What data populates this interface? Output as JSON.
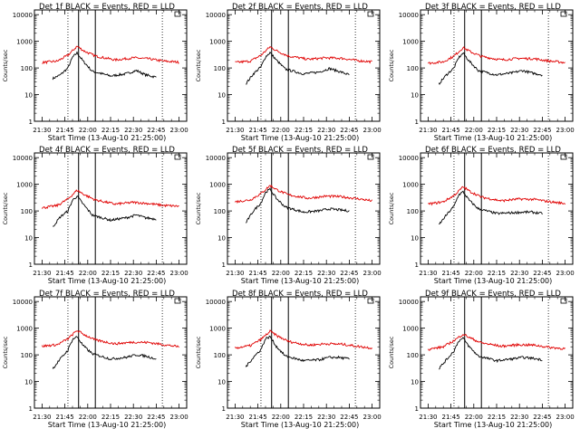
{
  "figure": {
    "x_label": "Start Time (13-Aug-10 21:25:00)",
    "y_label": "Counts/sec",
    "y_ticks": [
      "1",
      "10",
      "100",
      "1000",
      "10000"
    ],
    "x_ticks": [
      "21:30",
      "21:45",
      "22:00",
      "22:15",
      "22:30",
      "22:45",
      "23:00"
    ]
  },
  "chart_data": [
    {
      "type": "line",
      "title": "Det 1f BLACK = Events, RED = LLD",
      "log_y": true,
      "ylim": [
        1,
        15000
      ],
      "xlim": [
        "21:25",
        "23:05"
      ],
      "dotted_markers": [
        "21:47",
        "22:49"
      ],
      "solid_markers": [
        "21:54",
        "22:05"
      ],
      "series": [
        {
          "name": "Events",
          "color": "#000000",
          "x": [
            "21:37",
            "21:42",
            "21:47",
            "21:50",
            "21:53",
            "21:57",
            "22:03",
            "22:15",
            "22:25",
            "22:32",
            "22:38",
            "22:45"
          ],
          "values": [
            40,
            55,
            100,
            250,
            370,
            180,
            75,
            50,
            60,
            80,
            55,
            45
          ]
        },
        {
          "name": "LLD",
          "color": "#e00000",
          "x": [
            "21:30",
            "21:40",
            "21:47",
            "21:53",
            "21:58",
            "22:05",
            "22:18",
            "22:30",
            "22:40",
            "22:50",
            "23:00"
          ],
          "values": [
            160,
            180,
            300,
            650,
            420,
            280,
            200,
            240,
            220,
            180,
            165
          ]
        }
      ]
    },
    {
      "type": "line",
      "title": "Det 2f BLACK = Events, RED = LLD",
      "log_y": true,
      "ylim": [
        1,
        15000
      ],
      "xlim": [
        "21:25",
        "23:05"
      ],
      "dotted_markers": [
        "21:47",
        "22:49"
      ],
      "solid_markers": [
        "21:54",
        "22:05"
      ],
      "series": [
        {
          "name": "Events",
          "color": "#000000",
          "x": [
            "21:37",
            "21:42",
            "21:47",
            "21:50",
            "21:53",
            "21:57",
            "22:03",
            "22:15",
            "22:25",
            "22:32",
            "22:38",
            "22:45"
          ],
          "values": [
            25,
            60,
            110,
            260,
            380,
            200,
            90,
            60,
            70,
            95,
            75,
            55
          ]
        },
        {
          "name": "LLD",
          "color": "#e00000",
          "x": [
            "21:30",
            "21:40",
            "21:47",
            "21:53",
            "21:58",
            "22:05",
            "22:18",
            "22:30",
            "22:40",
            "22:50",
            "23:00"
          ],
          "values": [
            160,
            180,
            300,
            620,
            420,
            280,
            210,
            240,
            230,
            190,
            170
          ]
        }
      ]
    },
    {
      "type": "line",
      "title": "Det 3f BLACK = Events, RED = LLD",
      "log_y": true,
      "ylim": [
        1,
        15000
      ],
      "xlim": [
        "21:25",
        "23:05"
      ],
      "dotted_markers": [
        "21:47",
        "22:49"
      ],
      "solid_markers": [
        "21:54",
        "22:05"
      ],
      "series": [
        {
          "name": "Events",
          "color": "#000000",
          "x": [
            "21:37",
            "21:42",
            "21:47",
            "21:50",
            "21:53",
            "21:57",
            "22:03",
            "22:15",
            "22:25",
            "22:32",
            "22:38",
            "22:45"
          ],
          "values": [
            25,
            55,
            100,
            240,
            360,
            180,
            80,
            55,
            65,
            80,
            65,
            55
          ]
        },
        {
          "name": "LLD",
          "color": "#e00000",
          "x": [
            "21:30",
            "21:40",
            "21:47",
            "21:53",
            "21:58",
            "22:05",
            "22:18",
            "22:30",
            "22:40",
            "22:50",
            "23:00"
          ],
          "values": [
            150,
            170,
            280,
            580,
            400,
            270,
            200,
            230,
            220,
            180,
            160
          ]
        }
      ]
    },
    {
      "type": "line",
      "title": "Det 4f BLACK = Events, RED = LLD",
      "log_y": true,
      "ylim": [
        1,
        15000
      ],
      "xlim": [
        "21:25",
        "23:05"
      ],
      "dotted_markers": [
        "21:47",
        "22:49"
      ],
      "solid_markers": [
        "21:54",
        "22:05"
      ],
      "series": [
        {
          "name": "Events",
          "color": "#000000",
          "x": [
            "21:37",
            "21:42",
            "21:47",
            "21:50",
            "21:53",
            "21:57",
            "22:03",
            "22:15",
            "22:25",
            "22:32",
            "22:38",
            "22:45"
          ],
          "values": [
            25,
            60,
            100,
            250,
            360,
            180,
            70,
            45,
            55,
            70,
            55,
            50
          ]
        },
        {
          "name": "LLD",
          "color": "#e00000",
          "x": [
            "21:30",
            "21:40",
            "21:47",
            "21:53",
            "21:58",
            "22:05",
            "22:18",
            "22:30",
            "22:40",
            "22:50",
            "23:00"
          ],
          "values": [
            130,
            160,
            280,
            600,
            400,
            260,
            180,
            210,
            190,
            160,
            150
          ]
        }
      ]
    },
    {
      "type": "line",
      "title": "Det 5f BLACK = Events, RED = LLD",
      "log_y": true,
      "ylim": [
        1,
        15000
      ],
      "xlim": [
        "21:25",
        "23:05"
      ],
      "dotted_markers": [
        "21:47",
        "22:49"
      ],
      "solid_markers": [
        "21:54",
        "22:05"
      ],
      "series": [
        {
          "name": "Events",
          "color": "#000000",
          "x": [
            "21:37",
            "21:42",
            "21:47",
            "21:50",
            "21:53",
            "21:57",
            "22:03",
            "22:15",
            "22:25",
            "22:32",
            "22:38",
            "22:45"
          ],
          "values": [
            35,
            100,
            200,
            500,
            650,
            300,
            140,
            90,
            100,
            120,
            110,
            100
          ]
        },
        {
          "name": "LLD",
          "color": "#e00000",
          "x": [
            "21:30",
            "21:40",
            "21:47",
            "21:53",
            "21:58",
            "22:05",
            "22:18",
            "22:30",
            "22:40",
            "22:50",
            "23:00"
          ],
          "values": [
            220,
            260,
            450,
            900,
            600,
            400,
            300,
            360,
            340,
            290,
            240
          ]
        }
      ]
    },
    {
      "type": "line",
      "title": "Det 6f BLACK = Events, RED = LLD",
      "log_y": true,
      "ylim": [
        1,
        15000
      ],
      "xlim": [
        "21:25",
        "23:05"
      ],
      "dotted_markers": [
        "21:47",
        "22:49"
      ],
      "solid_markers": [
        "21:54",
        "22:05"
      ],
      "series": [
        {
          "name": "Events",
          "color": "#000000",
          "x": [
            "21:37",
            "21:42",
            "21:47",
            "21:50",
            "21:53",
            "21:57",
            "22:03",
            "22:15",
            "22:25",
            "22:32",
            "22:38",
            "22:45"
          ],
          "values": [
            30,
            70,
            150,
            400,
            520,
            250,
            120,
            80,
            85,
            90,
            90,
            80
          ]
        },
        {
          "name": "LLD",
          "color": "#e00000",
          "x": [
            "21:30",
            "21:40",
            "21:47",
            "21:53",
            "21:58",
            "22:05",
            "22:18",
            "22:30",
            "22:40",
            "22:50",
            "23:00"
          ],
          "values": [
            180,
            220,
            380,
            800,
            520,
            330,
            240,
            280,
            270,
            220,
            190
          ]
        }
      ]
    },
    {
      "type": "line",
      "title": "Det 7f BLACK = Events, RED = LLD",
      "log_y": true,
      "ylim": [
        1,
        15000
      ],
      "xlim": [
        "21:25",
        "23:05"
      ],
      "dotted_markers": [
        "21:47",
        "22:49"
      ],
      "solid_markers": [
        "21:54",
        "22:05"
      ],
      "series": [
        {
          "name": "Events",
          "color": "#000000",
          "x": [
            "21:37",
            "21:42",
            "21:47",
            "21:50",
            "21:53",
            "21:57",
            "22:03",
            "22:15",
            "22:25",
            "22:32",
            "22:38",
            "22:45"
          ],
          "values": [
            30,
            70,
            150,
            380,
            480,
            220,
            110,
            70,
            80,
            100,
            90,
            70
          ]
        },
        {
          "name": "LLD",
          "color": "#e00000",
          "x": [
            "21:30",
            "21:40",
            "21:47",
            "21:53",
            "21:58",
            "22:05",
            "22:18",
            "22:30",
            "22:40",
            "22:50",
            "23:00"
          ],
          "values": [
            210,
            240,
            400,
            820,
            560,
            360,
            260,
            300,
            290,
            240,
            200
          ]
        }
      ]
    },
    {
      "type": "line",
      "title": "Det 8f BLACK = Events, RED = LLD",
      "log_y": true,
      "ylim": [
        1,
        15000
      ],
      "xlim": [
        "21:25",
        "23:05"
      ],
      "dotted_markers": [
        "21:47",
        "22:49"
      ],
      "solid_markers": [
        "21:54",
        "22:05"
      ],
      "series": [
        {
          "name": "Events",
          "color": "#000000",
          "x": [
            "21:37",
            "21:42",
            "21:47",
            "21:50",
            "21:53",
            "21:57",
            "22:03",
            "22:15",
            "22:25",
            "22:32",
            "22:38",
            "22:45"
          ],
          "values": [
            35,
            80,
            160,
            400,
            480,
            210,
            90,
            60,
            65,
            80,
            80,
            70
          ]
        },
        {
          "name": "LLD",
          "color": "#e00000",
          "x": [
            "21:30",
            "21:40",
            "21:47",
            "21:53",
            "21:58",
            "22:05",
            "22:18",
            "22:30",
            "22:40",
            "22:50",
            "23:00"
          ],
          "values": [
            180,
            220,
            380,
            760,
            500,
            320,
            230,
            260,
            250,
            210,
            180
          ]
        }
      ]
    },
    {
      "type": "line",
      "title": "Det 9f BLACK = Events, RED = LLD",
      "log_y": true,
      "ylim": [
        1,
        15000
      ],
      "xlim": [
        "21:25",
        "23:05"
      ],
      "dotted_markers": [
        "21:47",
        "22:49"
      ],
      "solid_markers": [
        "21:54",
        "22:05"
      ],
      "series": [
        {
          "name": "Events",
          "color": "#000000",
          "x": [
            "21:37",
            "21:42",
            "21:47",
            "21:50",
            "21:53",
            "21:57",
            "22:03",
            "22:15",
            "22:25",
            "22:32",
            "22:38",
            "22:45"
          ],
          "values": [
            30,
            65,
            140,
            330,
            420,
            200,
            90,
            60,
            70,
            80,
            75,
            65
          ]
        },
        {
          "name": "LLD",
          "color": "#e00000",
          "x": [
            "21:30",
            "21:40",
            "21:47",
            "21:53",
            "21:58",
            "22:05",
            "22:18",
            "22:30",
            "22:40",
            "22:50",
            "23:00"
          ],
          "values": [
            160,
            200,
            340,
            600,
            420,
            280,
            210,
            240,
            230,
            190,
            170
          ]
        }
      ]
    }
  ]
}
